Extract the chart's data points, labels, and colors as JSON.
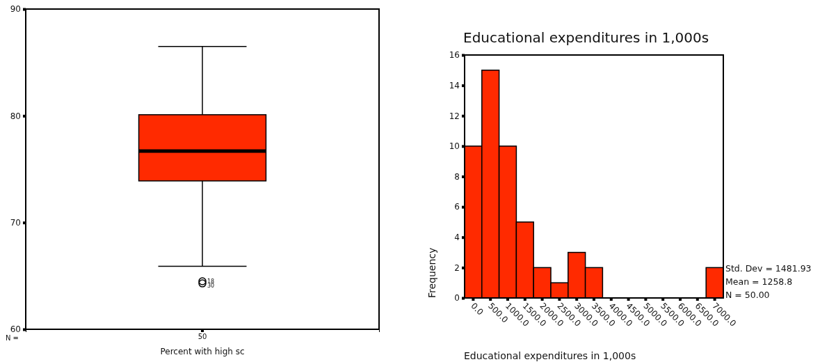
{
  "chart_data": [
    {
      "type": "box",
      "categories": [
        "50"
      ],
      "xlabel": "Percent with high sc",
      "ylim": [
        60,
        90
      ],
      "yticks": [
        60,
        70,
        80,
        90
      ],
      "color": "#ff2a00",
      "boxes": [
        {
          "low": 65.9,
          "q1": 73.9,
          "median": 76.7,
          "q3": 80.1,
          "high": 86.5,
          "outliers": [
            64.5,
            64.3
          ]
        }
      ],
      "annotations": [
        "N =",
        "18",
        "30"
      ]
    },
    {
      "type": "histogram",
      "title": "Educational expenditures in 1,000s",
      "xlabel": "Educational expenditures in 1,000s",
      "ylabel": "Frequency",
      "color": "#ff2a00",
      "bins": [
        -250,
        250,
        750,
        1250,
        1750,
        2250,
        2750,
        3250,
        3750,
        4250,
        4750,
        5250,
        5750,
        6250,
        6750,
        7250
      ],
      "values": [
        10,
        15,
        10,
        5,
        2,
        1,
        3,
        2,
        0,
        0,
        0,
        0,
        0,
        0,
        2
      ],
      "xlim": [
        -250,
        7250
      ],
      "xticks": [
        {
          "value": 0,
          "label": "0.0"
        },
        {
          "value": 500,
          "label": "500.0"
        },
        {
          "value": 1000,
          "label": "1000.0"
        },
        {
          "value": 1500,
          "label": "1500.0"
        },
        {
          "value": 2000,
          "label": "2000.0"
        },
        {
          "value": 2500,
          "label": "2500.0"
        },
        {
          "value": 3000,
          "label": "3000.0"
        },
        {
          "value": 3500,
          "label": "3500.0"
        },
        {
          "value": 4000,
          "label": "4000.0"
        },
        {
          "value": 4500,
          "label": "4500.0"
        },
        {
          "value": 5000,
          "label": "5000.0"
        },
        {
          "value": 5500,
          "label": "5500.0"
        },
        {
          "value": 6000,
          "label": "6000.0"
        },
        {
          "value": 6500,
          "label": "6500.0"
        },
        {
          "value": 7000,
          "label": "7000.0"
        }
      ],
      "ylim": [
        0,
        16
      ],
      "yticks": [
        0,
        2,
        4,
        6,
        8,
        10,
        12,
        14,
        16
      ],
      "annotations": [
        "Std. Dev = 1481.93",
        "Mean = 1258.8",
        "N = 50.00"
      ]
    }
  ]
}
